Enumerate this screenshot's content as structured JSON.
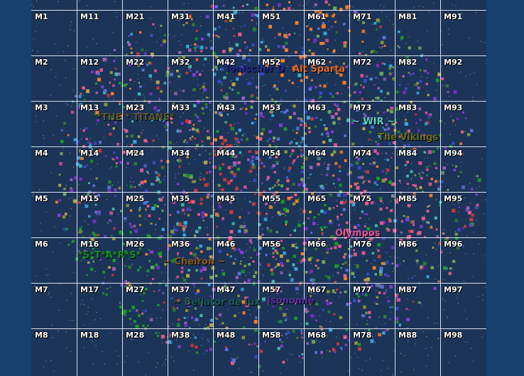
{
  "colors": {
    "background": "#17406f",
    "ocean": "#1b3458",
    "grid": "#d8dde6",
    "cell_text": "#ffffff",
    "palette": [
      "#2d7b30",
      "#1a9a2a",
      "#3a49c8",
      "#7b3dd1",
      "#e05a8a",
      "#f07c2a",
      "#46b4a8",
      "#8a8f3a",
      "#c03b3b",
      "#5b6fd8",
      "#3aa3d9",
      "#9a5fb8",
      "#b8a14a",
      "#6fa35a",
      "#7a2ec0",
      "#d94f9a"
    ]
  },
  "grid": {
    "rows": [
      [
        "M1",
        "M11",
        "M21",
        "M31",
        "M41",
        "M51",
        "M61",
        "M71",
        "M81",
        "M91"
      ],
      [
        "M2",
        "M12",
        "M22",
        "M32",
        "M42",
        "M52",
        "M62",
        "M72",
        "M82",
        "M92"
      ],
      [
        "M3",
        "M13",
        "M23",
        "M33",
        "M43",
        "M53",
        "M63",
        "M73",
        "M83",
        "M93"
      ],
      [
        "M4",
        "M14",
        "M24",
        "M34",
        "M44",
        "M54",
        "M64",
        "M74",
        "M84",
        "M94"
      ],
      [
        "M5",
        "M15",
        "M25",
        "M35",
        "M45",
        "M55",
        "M65",
        "M75",
        "M85",
        "M95"
      ],
      [
        "M6",
        "M16",
        "M26",
        "M36",
        "M46",
        "M56",
        "M66",
        "M76",
        "M86",
        "M96"
      ],
      [
        "M7",
        "M17",
        "M27",
        "M37",
        "M47",
        "M57",
        "M67",
        "M77",
        "M87",
        "M97"
      ],
      [
        "M8",
        "M18",
        "M28",
        "M38",
        "M48",
        "M58",
        "M68",
        "M78",
        "M88",
        "M98"
      ]
    ]
  },
  "alliances": [
    {
      "name": "Tonischer D",
      "color": "#1d2b8a"
    },
    {
      "name": "Alt Sparta",
      "color": "#e06a2b"
    },
    {
      "name": "*THE * TITANS*",
      "color": "#5a5a2a"
    },
    {
      "name": "~ WIR ~",
      "color": "#5fd0c0"
    },
    {
      "name": "The Vikings",
      "color": "#6b6a1a"
    },
    {
      "name": "Olympos",
      "color": "#e0559a"
    },
    {
      "name": "*S*T*A*R*S*",
      "color": "#1a8a22"
    },
    {
      "name": "~ Cheiron ~",
      "color": "#8a5a1a"
    },
    {
      "name": "~ Bellator de lux",
      "color": "#1a5a5a"
    },
    {
      "name": "Isonomie",
      "color": "#5a2ea0"
    }
  ]
}
